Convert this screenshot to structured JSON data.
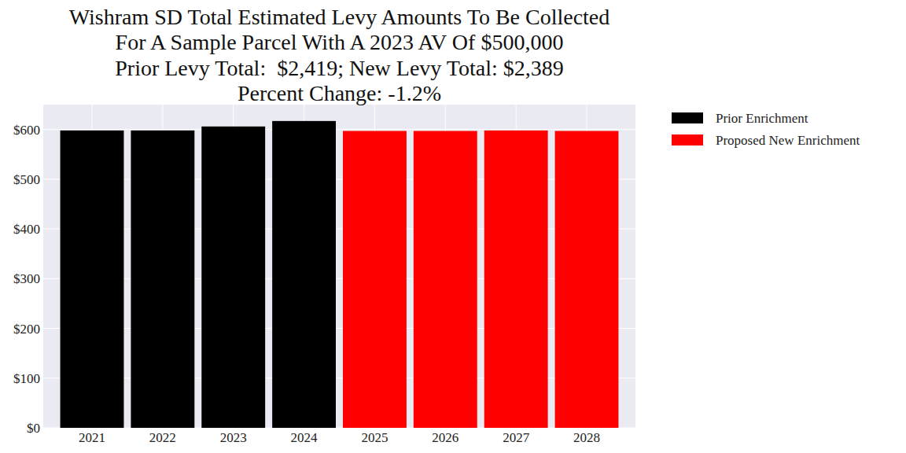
{
  "chart_data": {
    "type": "bar",
    "title": "Wishram SD Total Estimated Levy Amounts To Be Collected\nFor A Sample Parcel With A 2023 AV Of $500,000\nPrior Levy Total:  $2,419; New Levy Total: $2,389\nPercent Change: -1.2%",
    "categories": [
      "2021",
      "2022",
      "2023",
      "2024",
      "2025",
      "2026",
      "2027",
      "2028"
    ],
    "series": [
      {
        "name": "Prior Enrichment",
        "color": "#000000",
        "values": [
          598,
          598,
          606,
          617,
          null,
          null,
          null,
          null
        ]
      },
      {
        "name": "Proposed New Enrichment",
        "color": "#ff0000",
        "values": [
          null,
          null,
          null,
          null,
          597,
          597,
          598,
          597
        ]
      }
    ],
    "ylim": [
      0,
      650
    ],
    "yticks": [
      {
        "value": 0,
        "label": "$0"
      },
      {
        "value": 100,
        "label": "$100"
      },
      {
        "value": 200,
        "label": "$200"
      },
      {
        "value": 300,
        "label": "$300"
      },
      {
        "value": 400,
        "label": "$400"
      },
      {
        "value": 500,
        "label": "$500"
      },
      {
        "value": 600,
        "label": "$600"
      }
    ],
    "grid": true,
    "legend": "outside-right"
  }
}
